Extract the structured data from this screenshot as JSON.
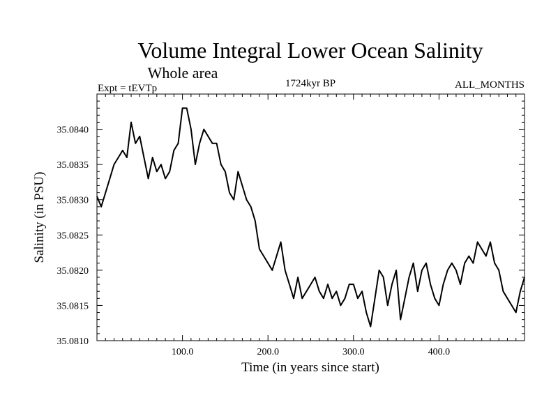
{
  "chart_data": {
    "type": "line",
    "title": "Volume Integral Lower Ocean Salinity",
    "subtitle": "Whole area",
    "header_left": "Expt = tEVTp",
    "header_center": "1724kyr BP",
    "header_right": "ALL_MONTHS",
    "xlabel": "Time (in years since start)",
    "ylabel": "Salinity (in PSU)",
    "xlim": [
      0,
      500
    ],
    "ylim": [
      35.081,
      35.0845
    ],
    "x_ticks": [
      100,
      200,
      300,
      400
    ],
    "x_tick_labels": [
      "100.0",
      "200.0",
      "300.0",
      "400.0"
    ],
    "y_ticks": [
      35.081,
      35.0815,
      35.082,
      35.0825,
      35.083,
      35.0835,
      35.084
    ],
    "y_tick_labels": [
      "35.0810",
      "35.0815",
      "35.0820",
      "35.0825",
      "35.0830",
      "35.0835",
      "35.0840"
    ],
    "grid": false,
    "series": [
      {
        "name": "Salinity",
        "color": "#000000",
        "x": [
          0,
          5,
          10,
          15,
          20,
          25,
          30,
          35,
          40,
          45,
          50,
          55,
          60,
          65,
          70,
          75,
          80,
          85,
          90,
          95,
          100,
          105,
          110,
          115,
          120,
          125,
          130,
          135,
          140,
          145,
          150,
          155,
          160,
          165,
          170,
          175,
          180,
          185,
          190,
          195,
          200,
          205,
          210,
          215,
          220,
          225,
          230,
          235,
          240,
          245,
          250,
          255,
          260,
          265,
          270,
          275,
          280,
          285,
          290,
          295,
          300,
          305,
          310,
          315,
          320,
          325,
          330,
          335,
          340,
          345,
          350,
          355,
          360,
          365,
          370,
          375,
          380,
          385,
          390,
          395,
          400,
          405,
          410,
          415,
          420,
          425,
          430,
          435,
          440,
          445,
          450,
          455,
          460,
          465,
          470,
          475,
          480,
          485,
          490,
          495,
          500
        ],
        "values": [
          35.08305,
          35.0829,
          35.0831,
          35.0833,
          35.0835,
          35.0836,
          35.0837,
          35.0836,
          35.0841,
          35.0838,
          35.0839,
          35.0836,
          35.0833,
          35.0836,
          35.0834,
          35.0835,
          35.0833,
          35.0834,
          35.0837,
          35.0838,
          35.0843,
          35.0843,
          35.084,
          35.0835,
          35.0838,
          35.084,
          35.0839,
          35.0838,
          35.0838,
          35.0835,
          35.0834,
          35.0831,
          35.083,
          35.0834,
          35.0832,
          35.083,
          35.0829,
          35.0827,
          35.0823,
          35.0822,
          35.0821,
          35.082,
          35.0822,
          35.0824,
          35.082,
          35.0818,
          35.0816,
          35.0819,
          35.0816,
          35.0817,
          35.0818,
          35.0819,
          35.0817,
          35.0816,
          35.0818,
          35.0816,
          35.0817,
          35.0815,
          35.0816,
          35.0818,
          35.0818,
          35.0816,
          35.0817,
          35.0814,
          35.0812,
          35.0816,
          35.082,
          35.0819,
          35.0815,
          35.0818,
          35.082,
          35.0813,
          35.0816,
          35.0819,
          35.0821,
          35.0817,
          35.082,
          35.0821,
          35.0818,
          35.0816,
          35.0815,
          35.0818,
          35.082,
          35.0821,
          35.082,
          35.0818,
          35.0821,
          35.0822,
          35.0821,
          35.0824,
          35.0823,
          35.0822,
          35.0824,
          35.0821,
          35.082,
          35.0817,
          35.0816,
          35.0815,
          35.0814,
          35.0817,
          35.0819
        ]
      }
    ]
  }
}
